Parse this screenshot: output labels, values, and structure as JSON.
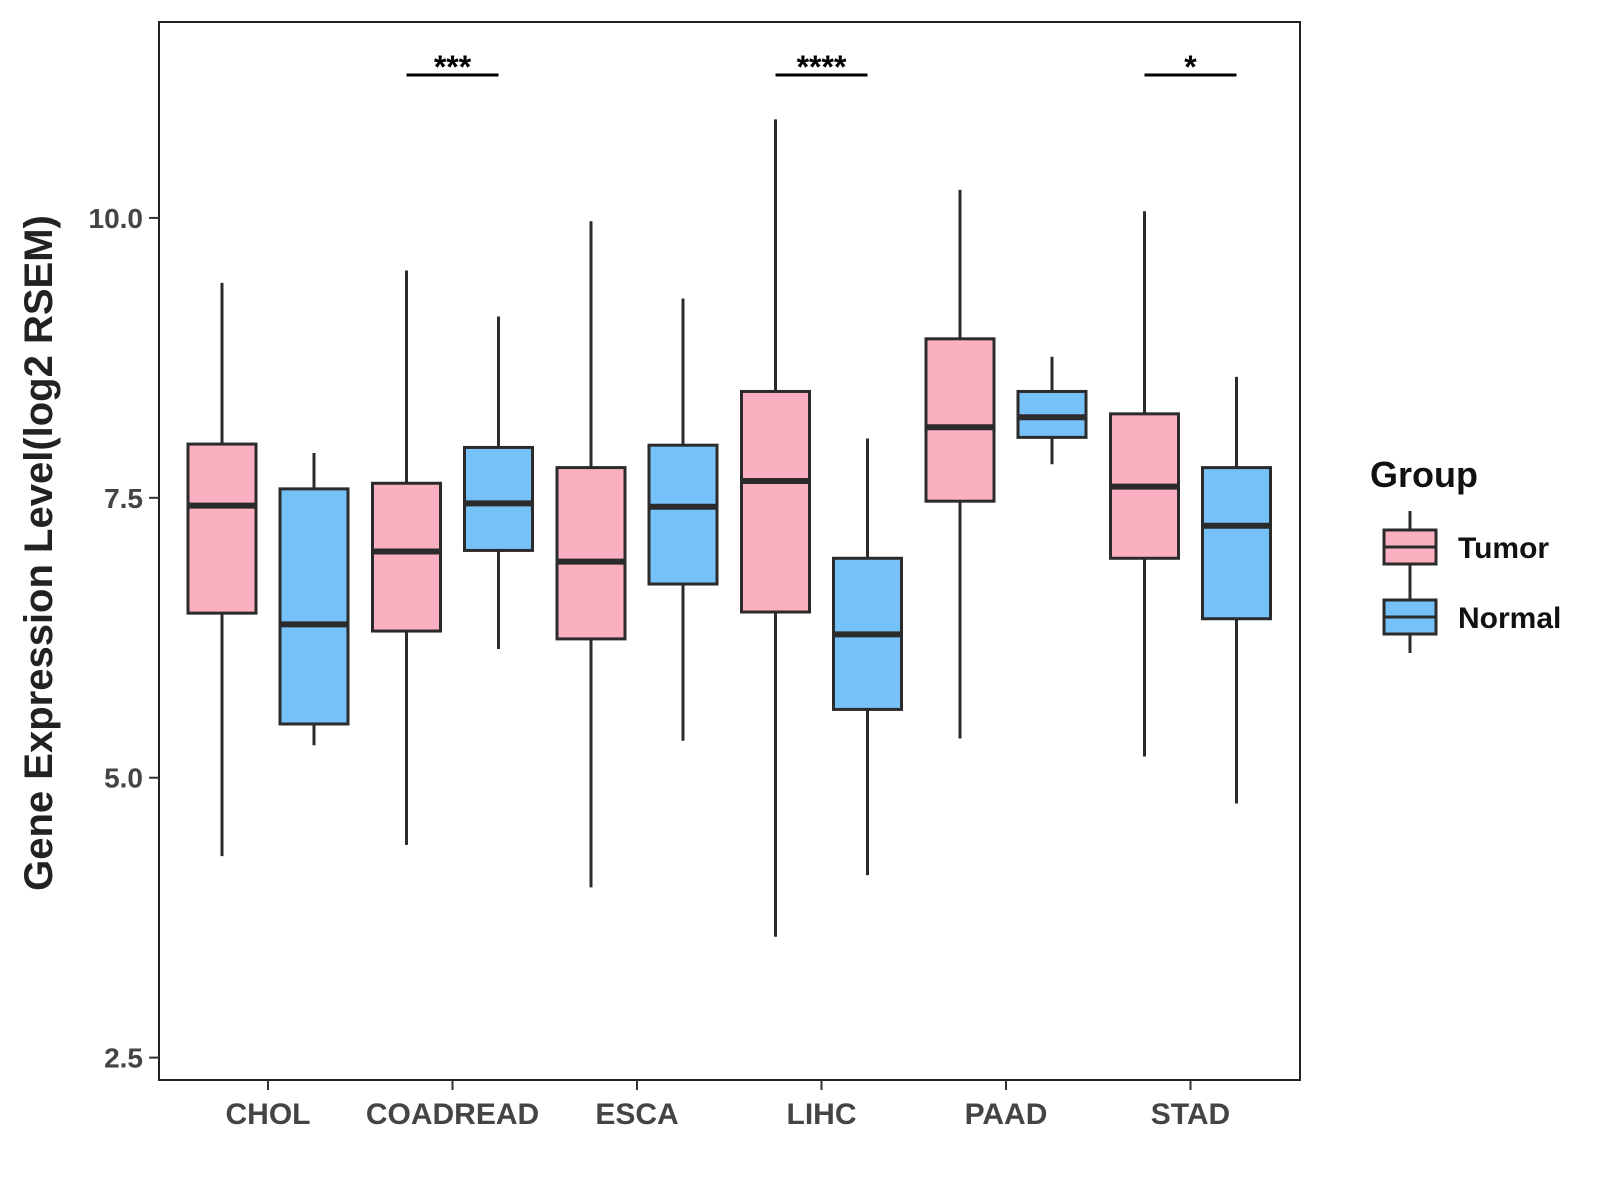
{
  "chart_data": {
    "type": "boxplot",
    "title": "",
    "xlabel": "",
    "ylabel": "Gene Expression Level(log2 RSEM)",
    "ylim": [
      2.3,
      11.75
    ],
    "yticks": [
      2.5,
      5.0,
      7.5,
      10.0
    ],
    "ytick_labels": [
      "2.5",
      "5.0",
      "7.5",
      "10.0"
    ],
    "categories": [
      "CHOL",
      "COADREAD",
      "ESCA",
      "LIHC",
      "PAAD",
      "STAD"
    ],
    "legend": {
      "title": "Group",
      "position": "right",
      "entries": [
        {
          "name": "Tumor",
          "color": "#FBB0C1"
        },
        {
          "name": "Normal",
          "color": "#76C1F8"
        }
      ]
    },
    "series": [
      {
        "name": "Tumor",
        "color": "#FBB0C1",
        "boxes": [
          {
            "min": 4.3,
            "q1": 6.47,
            "median": 7.43,
            "q3": 7.98,
            "max": 9.42
          },
          {
            "min": 4.4,
            "q1": 6.31,
            "median": 7.02,
            "q3": 7.63,
            "max": 9.53
          },
          {
            "min": 4.02,
            "q1": 6.24,
            "median": 6.93,
            "q3": 7.77,
            "max": 9.97
          },
          {
            "min": 3.58,
            "q1": 6.48,
            "median": 7.65,
            "q3": 8.45,
            "max": 10.88
          },
          {
            "min": 5.35,
            "q1": 7.47,
            "median": 8.13,
            "q3": 8.92,
            "max": 10.25
          },
          {
            "min": 5.19,
            "q1": 6.96,
            "median": 7.6,
            "q3": 8.25,
            "max": 10.06
          }
        ]
      },
      {
        "name": "Normal",
        "color": "#76C1F8",
        "boxes": [
          {
            "min": 5.29,
            "q1": 5.48,
            "median": 6.37,
            "q3": 7.58,
            "max": 7.9
          },
          {
            "min": 6.15,
            "q1": 7.03,
            "median": 7.45,
            "q3": 7.95,
            "max": 9.12
          },
          {
            "min": 5.33,
            "q1": 6.73,
            "median": 7.42,
            "q3": 7.97,
            "max": 9.28
          },
          {
            "min": 4.13,
            "q1": 5.61,
            "median": 6.28,
            "q3": 6.96,
            "max": 8.03
          },
          {
            "min": 7.8,
            "q1": 8.04,
            "median": 8.22,
            "q3": 8.45,
            "max": 8.76
          },
          {
            "min": 4.77,
            "q1": 6.42,
            "median": 7.25,
            "q3": 7.77,
            "max": 8.58
          }
        ]
      }
    ],
    "significance": [
      {
        "category": "COADREAD",
        "label": "***"
      },
      {
        "category": "LIHC",
        "label": "****"
      },
      {
        "category": "STAD",
        "label": "*"
      }
    ]
  }
}
